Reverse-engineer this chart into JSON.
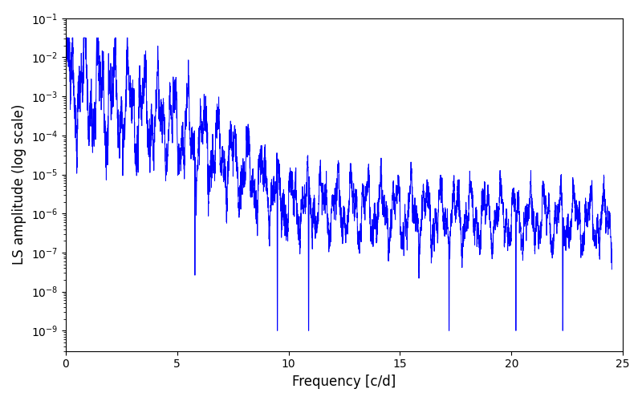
{
  "xlabel": "Frequency [c/d]",
  "ylabel": "LS amplitude (log scale)",
  "line_color": "#0000ff",
  "line_width": 0.7,
  "xlim": [
    0,
    25
  ],
  "ylim": [
    3e-10,
    0.1
  ],
  "freq_max": 24.5,
  "n_points": 5000,
  "seed": 12345,
  "figsize": [
    8.0,
    5.0
  ],
  "dpi": 100
}
